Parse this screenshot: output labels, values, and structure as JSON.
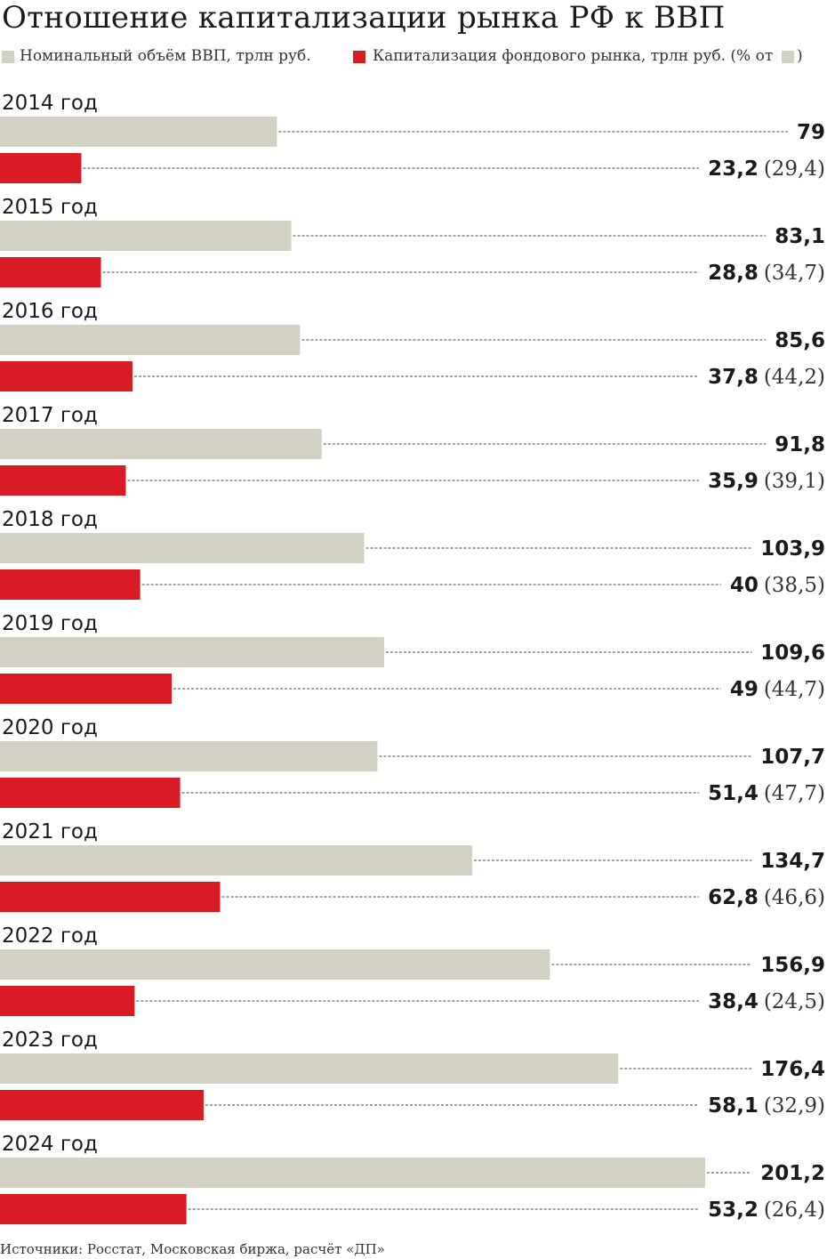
{
  "colors": {
    "gdp": "#d3d1c4",
    "cap": "#d91c24",
    "text": "#1a1a1a",
    "dots": "#444444"
  },
  "chart_data": {
    "type": "bar",
    "orientation": "horizontal",
    "title": "Отношение капитализации рынка РФ к ВВП",
    "legend": [
      {
        "name": "Номинальный объём ВВП, трлн руб.",
        "series": "gdp"
      },
      {
        "name": "Капитализация фондового рынка, трлн руб. (% от",
        "suffix": ")",
        "series": "cap"
      }
    ],
    "categories": [
      "2014 год",
      "2015 год",
      "2016 год",
      "2017 год",
      "2018 год",
      "2019 год",
      "2020 год",
      "2021 год",
      "2022 год",
      "2023 год",
      "2024 год"
    ],
    "series": [
      {
        "name": "Номинальный объём ВВП, трлн руб.",
        "key": "gdp",
        "values": [
          79,
          83.1,
          85.6,
          91.8,
          103.9,
          109.6,
          107.7,
          134.7,
          156.9,
          176.4,
          201.2
        ],
        "labels": [
          "79",
          "83,1",
          "85,6",
          "91,8",
          "103,9",
          "109,6",
          "107,7",
          "134,7",
          "156,9",
          "176,4",
          "201,2"
        ]
      },
      {
        "name": "Капитализация фондового рынка, трлн руб.",
        "key": "cap",
        "values": [
          23.2,
          28.8,
          37.8,
          35.9,
          40,
          49,
          51.4,
          62.8,
          38.4,
          58.1,
          53.2
        ],
        "labels": [
          "23,2",
          "28,8",
          "37,8",
          "35,9",
          "40",
          "49",
          "51,4",
          "62,8",
          "38,4",
          "58,1",
          "53,2"
        ],
        "pct_labels": [
          "(29,4)",
          "(34,7)",
          "(44,2)",
          "(39,1)",
          "(38,5)",
          "(44,7)",
          "(47,7)",
          "(46,6)",
          "(24,5)",
          "(32,9)",
          "(26,4)"
        ]
      }
    ],
    "xlim": [
      0,
      201.2
    ],
    "grid": false,
    "source": "Источники: Росстат, Московская биржа, расчёт «ДП»"
  }
}
